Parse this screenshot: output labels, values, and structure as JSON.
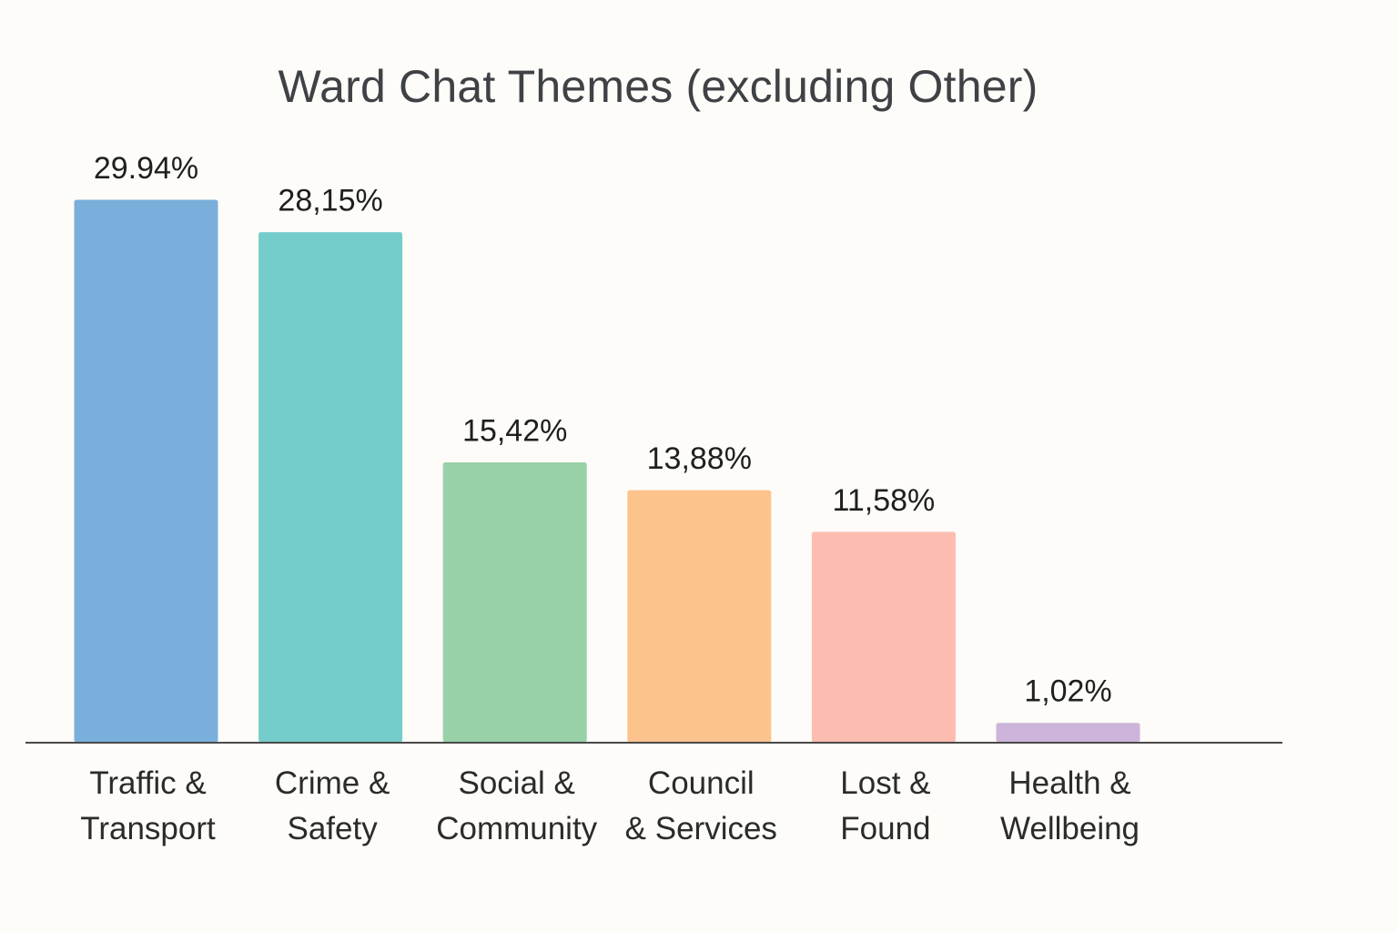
{
  "chart_data": {
    "type": "bar",
    "title": "Ward Chat Themes (excluding Other)",
    "xlabel": "",
    "ylabel": "",
    "ylim": [
      0,
      29.94
    ],
    "grid": false,
    "legend": "none",
    "categories": [
      [
        "Traffic &",
        "Transport"
      ],
      [
        "Crime &",
        "Safety"
      ],
      [
        "Social &",
        "Community"
      ],
      [
        "Council",
        "& Services"
      ],
      [
        "Lost &",
        "Found"
      ],
      [
        "Health &",
        "Wellbeing"
      ]
    ],
    "values": [
      29.94,
      28.15,
      15.42,
      13.88,
      11.58,
      1.02
    ],
    "value_labels": [
      "29.94%",
      "28,15%",
      "15,42%",
      "13,88%",
      "11,58%",
      "1,02%"
    ],
    "colors": [
      "#7aafdc",
      "#74cdca",
      "#98d1a8",
      "#fdc38d",
      "#fdbcb0",
      "#ccb4da"
    ]
  }
}
